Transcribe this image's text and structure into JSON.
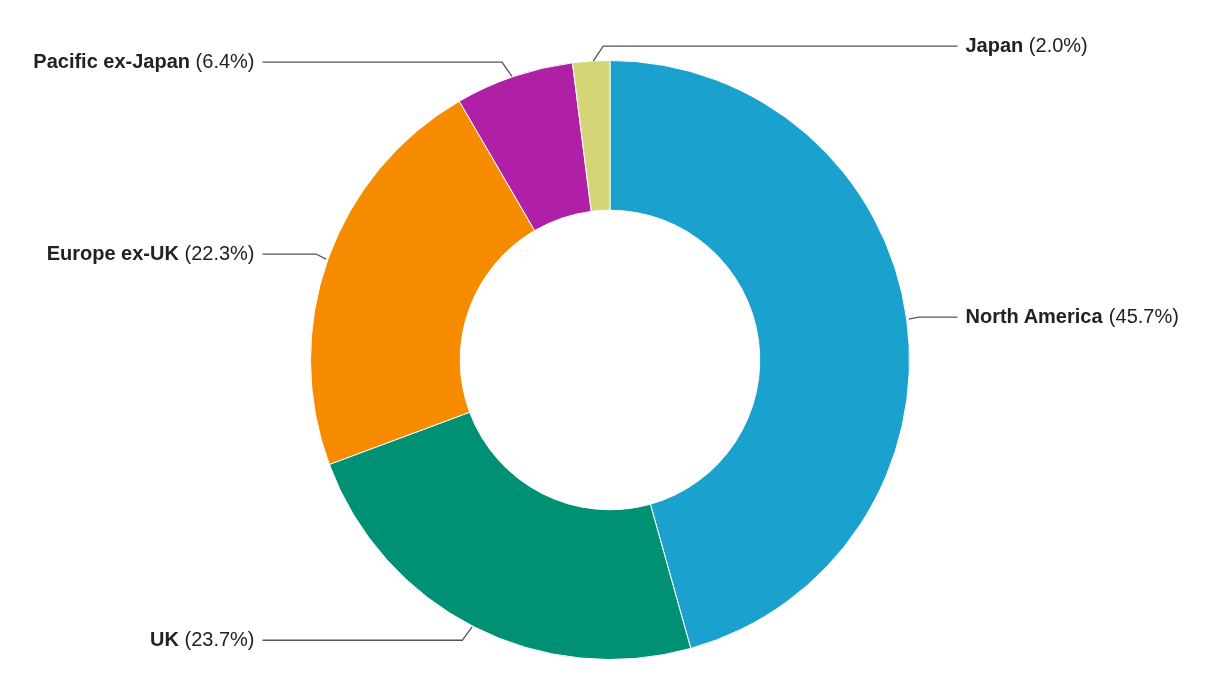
{
  "chart_data": {
    "type": "donut",
    "categories": [
      "North America",
      "UK",
      "Europe ex-UK",
      "Pacific ex-Japan",
      "Japan"
    ],
    "values": [
      45.7,
      23.7,
      22.3,
      6.4,
      2.0
    ],
    "colors": [
      "#1aa1ce",
      "#009073",
      "#f78b00",
      "#b020a6",
      "#d4d577"
    ],
    "value_labels": [
      "(45.7%)",
      "(23.7%)",
      "(22.3%)",
      "(6.4%)",
      "(2.0%)"
    ],
    "legend": false
  }
}
